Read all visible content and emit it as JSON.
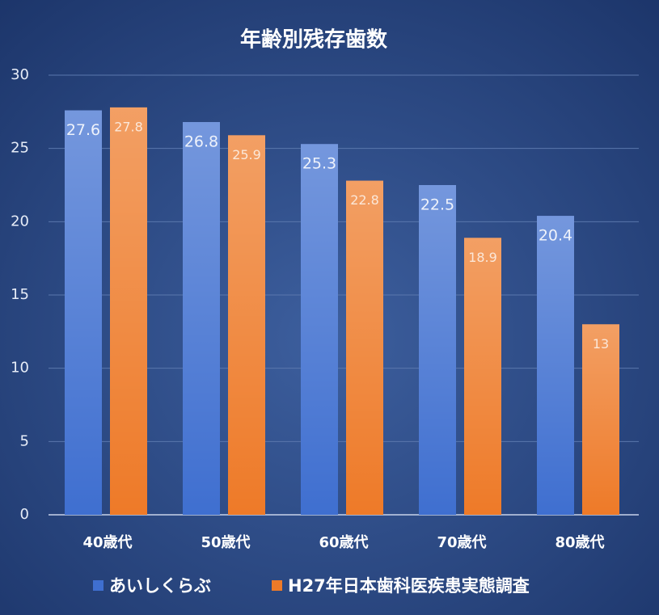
{
  "chart_data": {
    "type": "bar",
    "title": "年齢別残存歯数",
    "categories": [
      "40歳代",
      "50歳代",
      "60歳代",
      "70歳代",
      "80歳代"
    ],
    "series": [
      {
        "name": "あいしくらぶ",
        "color": "#3f6fd0",
        "values": [
          27.6,
          26.8,
          25.3,
          22.5,
          20.4
        ]
      },
      {
        "name": "H27年日本歯科医疾患実態調査",
        "color": "#ee7a28",
        "values": [
          27.8,
          25.9,
          22.8,
          18.9,
          13
        ]
      }
    ],
    "ylim": [
      0,
      30
    ],
    "yticks": [
      0,
      5,
      10,
      15,
      20,
      25,
      30
    ],
    "grid": true,
    "legend": "bottom"
  }
}
